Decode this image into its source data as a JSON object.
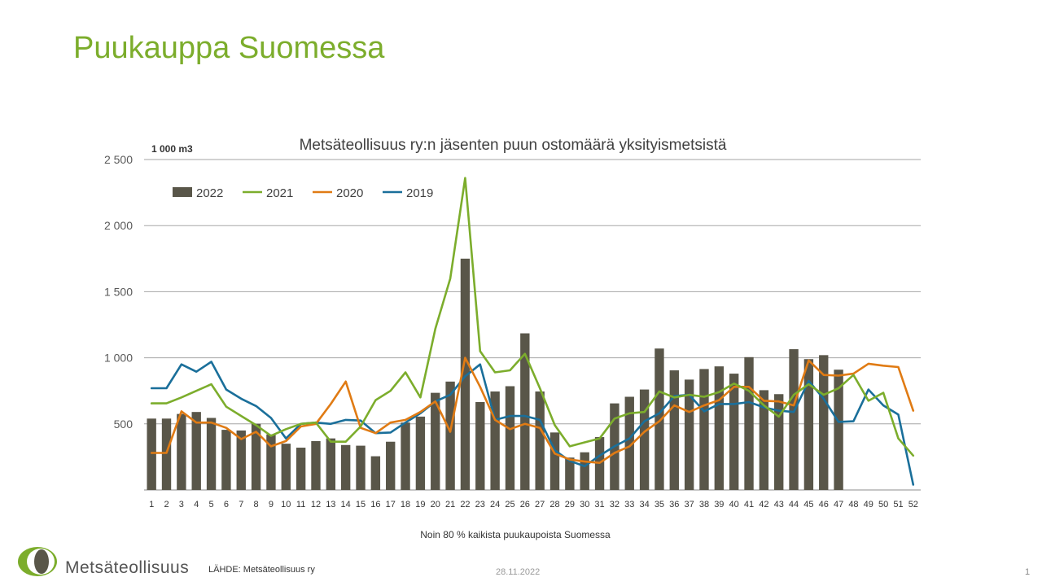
{
  "slide": {
    "title": "Puukauppa Suomessa",
    "footnote": "Noin 80 % kaikista puukaupoista Suomessa",
    "logo_text": "Metsäteollisuus",
    "source": "LÄHDE:  Metsäteollisuus ry",
    "date": "28.11.2022",
    "page_number": "1"
  },
  "chart_data": {
    "type": "bar",
    "title": "Metsäteollisuus ry:n jäsenten puun ostomäärä yksityismetsistä",
    "unit_label": "1 000 m3",
    "ylim": [
      0,
      2500
    ],
    "yticks": [
      0,
      500,
      1000,
      1500,
      2000,
      2500
    ],
    "ytick_labels": [
      "",
      "500",
      "1 000",
      "1 500",
      "2 000",
      "2 500"
    ],
    "grid": true,
    "legend_position": "top-left",
    "categories": [
      "1",
      "2",
      "3",
      "4",
      "5",
      "6",
      "7",
      "8",
      "9",
      "10",
      "11",
      "12",
      "13",
      "14",
      "15",
      "16",
      "17",
      "18",
      "19",
      "20",
      "21",
      "22",
      "23",
      "24",
      "25",
      "26",
      "27",
      "28",
      "29",
      "30",
      "31",
      "32",
      "33",
      "34",
      "35",
      "36",
      "37",
      "38",
      "39",
      "40",
      "41",
      "42",
      "43",
      "44",
      "45",
      "46",
      "47",
      "48",
      "49",
      "50",
      "51",
      "52"
    ],
    "series": [
      {
        "name": "2022",
        "kind": "bar",
        "color": "#595649",
        "values": [
          540,
          540,
          575,
          590,
          545,
          455,
          450,
          500,
          420,
          350,
          320,
          370,
          390,
          340,
          335,
          255,
          365,
          510,
          555,
          735,
          820,
          1750,
          665,
          745,
          785,
          1185,
          745,
          435,
          245,
          285,
          400,
          655,
          705,
          760,
          1070,
          905,
          835,
          915,
          935,
          880,
          1005,
          755,
          725,
          1065,
          990,
          1020,
          910,
          null,
          null,
          null,
          null,
          null
        ]
      },
      {
        "name": "2021",
        "kind": "line",
        "color": "#7cad2c",
        "values": [
          655,
          655,
          700,
          750,
          800,
          630,
          560,
          490,
          410,
          460,
          500,
          510,
          365,
          365,
          480,
          680,
          750,
          890,
          700,
          1220,
          1600,
          2360,
          1050,
          890,
          905,
          1030,
          770,
          490,
          330,
          360,
          390,
          540,
          580,
          590,
          745,
          700,
          720,
          705,
          740,
          805,
          750,
          640,
          555,
          720,
          800,
          720,
          770,
          870,
          675,
          735,
          390,
          260
        ]
      },
      {
        "name": "2020",
        "kind": "line",
        "color": "#e07b14",
        "values": [
          280,
          280,
          595,
          510,
          510,
          470,
          385,
          440,
          330,
          370,
          480,
          500,
          650,
          820,
          470,
          430,
          510,
          530,
          590,
          670,
          440,
          1000,
          780,
          530,
          460,
          500,
          470,
          275,
          230,
          215,
          205,
          280,
          330,
          440,
          520,
          640,
          590,
          640,
          680,
          780,
          780,
          675,
          670,
          640,
          980,
          870,
          865,
          880,
          955,
          940,
          930,
          600
        ]
      },
      {
        "name": "2019",
        "kind": "line",
        "color": "#1a6f9a",
        "values": [
          770,
          770,
          950,
          895,
          970,
          760,
          690,
          635,
          545,
          390,
          500,
          510,
          500,
          530,
          525,
          430,
          435,
          510,
          580,
          670,
          720,
          860,
          950,
          530,
          560,
          560,
          530,
          300,
          220,
          180,
          260,
          330,
          390,
          520,
          580,
          710,
          720,
          595,
          650,
          650,
          665,
          625,
          600,
          590,
          825,
          690,
          515,
          520,
          760,
          640,
          570,
          40
        ]
      }
    ]
  }
}
